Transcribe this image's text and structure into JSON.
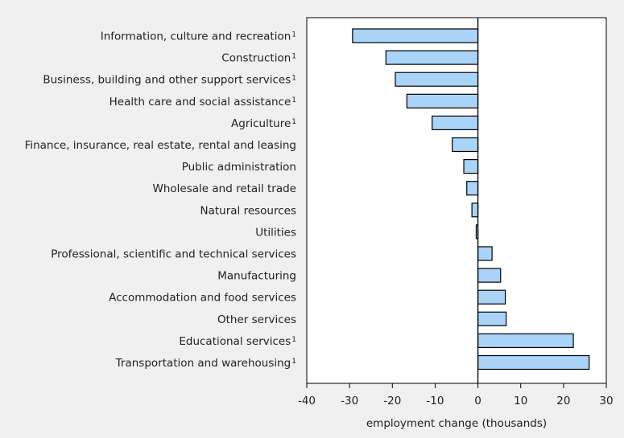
{
  "chart_data": {
    "type": "bar",
    "orientation": "horizontal",
    "xlabel": "employment change (thousands)",
    "xlim": [
      -40,
      30
    ],
    "xticks": [
      -40,
      -30,
      -20,
      -10,
      0,
      10,
      20,
      30
    ],
    "grid": false,
    "legend": "none",
    "bar_color": "#a9d4f7",
    "footnote_marker": "1",
    "categories": [
      {
        "name": "Information, culture and recreation",
        "footnote": true
      },
      {
        "name": "Construction",
        "footnote": true
      },
      {
        "name": "Business, building and other support services",
        "footnote": true
      },
      {
        "name": "Health care and social assistance",
        "footnote": true
      },
      {
        "name": "Agriculture",
        "footnote": true
      },
      {
        "name": "Finance, insurance, real estate, rental and leasing",
        "footnote": false
      },
      {
        "name": "Public administration",
        "footnote": false
      },
      {
        "name": "Wholesale and retail trade",
        "footnote": false
      },
      {
        "name": "Natural resources",
        "footnote": false
      },
      {
        "name": "Utilities",
        "footnote": false
      },
      {
        "name": "Professional, scientific and technical services",
        "footnote": false
      },
      {
        "name": "Manufacturing",
        "footnote": false
      },
      {
        "name": "Accommodation and food services",
        "footnote": false
      },
      {
        "name": "Other services",
        "footnote": false
      },
      {
        "name": "Educational services",
        "footnote": true
      },
      {
        "name": "Transportation and warehousing",
        "footnote": true
      }
    ],
    "values": [
      -29.3,
      -21.5,
      -19.3,
      -16.6,
      -10.7,
      -6.0,
      -3.3,
      -2.6,
      -1.4,
      -0.4,
      3.3,
      5.3,
      6.4,
      6.6,
      22.3,
      26.0
    ]
  }
}
